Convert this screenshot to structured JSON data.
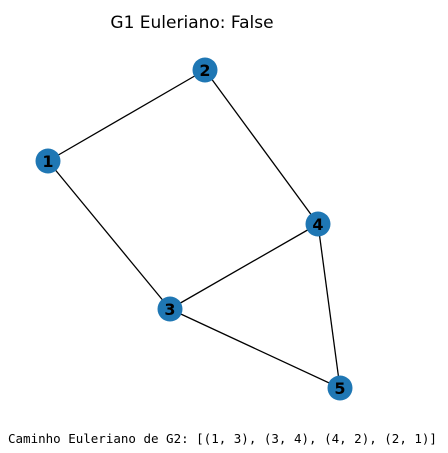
{
  "figure": {
    "title": "G1 Euleriano: False"
  },
  "graph": {
    "nodes": [
      {
        "id": 1,
        "label": "1"
      },
      {
        "id": 2,
        "label": "2"
      },
      {
        "id": 3,
        "label": "3"
      },
      {
        "id": 4,
        "label": "4"
      },
      {
        "id": 5,
        "label": "5"
      }
    ],
    "edges": [
      {
        "from": 1,
        "to": 2
      },
      {
        "from": 1,
        "to": 3
      },
      {
        "from": 2,
        "to": 4
      },
      {
        "from": 3,
        "to": 4
      },
      {
        "from": 3,
        "to": 5
      },
      {
        "from": 4,
        "to": 5
      }
    ],
    "colors": {
      "node_fill": "#1f77b4",
      "edge": "#000000",
      "label": "#000000"
    }
  },
  "console": {
    "output": "Caminho Euleriano de G2: [(1, 3), (3, 4), (4, 2), (2, 1)]"
  }
}
